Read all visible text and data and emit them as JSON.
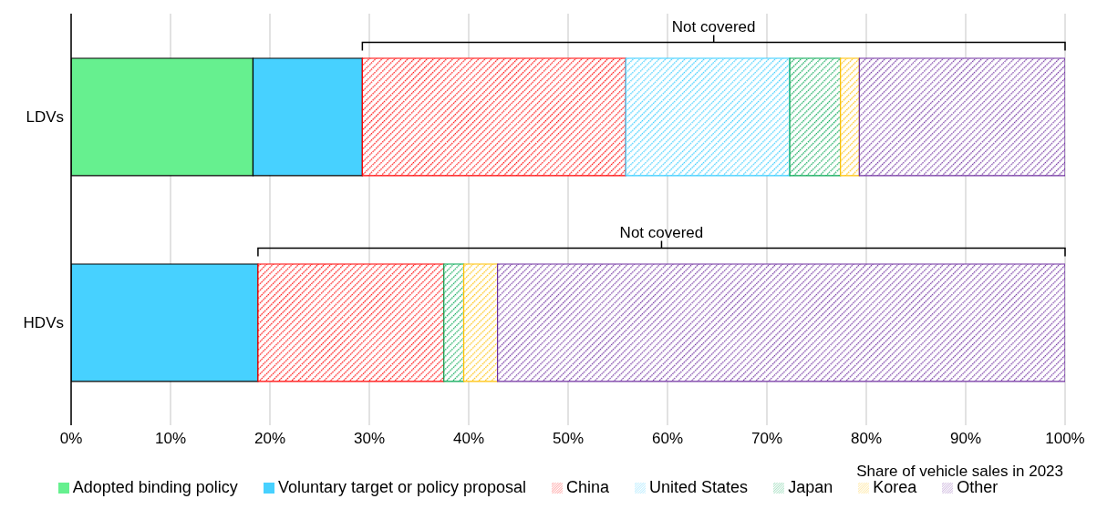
{
  "chart_data": {
    "type": "bar",
    "orientation": "horizontal",
    "stacked": true,
    "categories": [
      "LDVs",
      "HDVs"
    ],
    "series": [
      {
        "name": "Adopted binding policy",
        "color": "#66f08f",
        "values": [
          18.3,
          0
        ]
      },
      {
        "name": "Voluntary target or policy proposal",
        "color": "#47d1ff",
        "values": [
          11.0,
          18.8
        ]
      },
      {
        "name": "China",
        "color": "#ff0000",
        "values": [
          26.5,
          18.7
        ]
      },
      {
        "name": "United States",
        "color": "#33ccff",
        "values": [
          16.5,
          0
        ]
      },
      {
        "name": "Japan",
        "color": "#00a650",
        "values": [
          5.1,
          2.0
        ]
      },
      {
        "name": "Korea",
        "color": "#ffc000",
        "values": [
          1.9,
          3.4
        ]
      },
      {
        "name": "Other",
        "color": "#7030a0",
        "values": [
          20.7,
          57.1
        ]
      }
    ],
    "xlim": [
      0,
      100
    ],
    "xticks": [
      {
        "value": 0,
        "label": "0%"
      },
      {
        "value": 10,
        "label": "10%"
      },
      {
        "value": 20,
        "label": "20%"
      },
      {
        "value": 30,
        "label": "30%"
      },
      {
        "value": 40,
        "label": "40%"
      },
      {
        "value": 50,
        "label": "50%"
      },
      {
        "value": 60,
        "label": "60%"
      },
      {
        "value": 70,
        "label": "70%"
      },
      {
        "value": 80,
        "label": "80%"
      },
      {
        "value": 90,
        "label": "90%"
      },
      {
        "value": 100,
        "label": "100%"
      }
    ],
    "xlabel": "Share of vehicle sales in 2023",
    "annotations": [
      "Not covered",
      "Not covered"
    ],
    "grid": "x",
    "legend": "bottom"
  }
}
